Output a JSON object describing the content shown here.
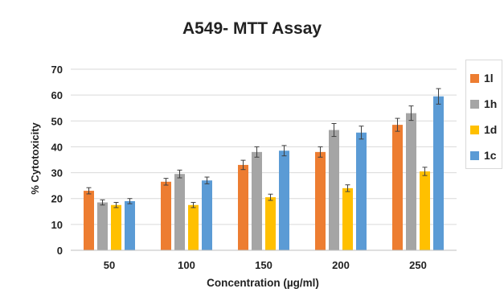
{
  "chart_data": {
    "type": "bar",
    "title": "A549- MTT Assay",
    "xlabel": "Concentration (µg/ml)",
    "ylabel": "% Cytotoxicity",
    "ylim": [
      0,
      70
    ],
    "yticks": [
      0,
      10,
      20,
      30,
      40,
      50,
      60,
      70
    ],
    "grid": true,
    "legend_position": "right",
    "error_bars": true,
    "categories": [
      "50",
      "100",
      "150",
      "200",
      "250"
    ],
    "series": [
      {
        "name": "1l",
        "color": "#ED7D31",
        "values": [
          23.0,
          26.5,
          33.0,
          38.0,
          48.5
        ],
        "errors": [
          1.2,
          1.3,
          1.8,
          2.0,
          2.5
        ]
      },
      {
        "name": "1h",
        "color": "#A5A5A5",
        "values": [
          18.5,
          29.5,
          38.0,
          46.5,
          53.0
        ],
        "errors": [
          1.0,
          1.5,
          2.0,
          2.5,
          2.8
        ]
      },
      {
        "name": "1d",
        "color": "#FFC000",
        "values": [
          17.5,
          17.5,
          20.5,
          24.0,
          30.5
        ],
        "errors": [
          1.0,
          1.0,
          1.2,
          1.3,
          1.6
        ]
      },
      {
        "name": "1c",
        "color": "#5B9BD5",
        "values": [
          19.0,
          27.0,
          38.5,
          45.5,
          59.5
        ],
        "errors": [
          1.0,
          1.3,
          2.0,
          2.5,
          3.0
        ]
      }
    ]
  }
}
